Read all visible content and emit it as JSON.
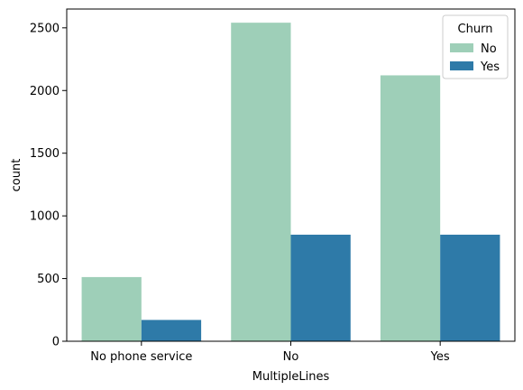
{
  "chart_data": {
    "type": "bar",
    "title": "",
    "xlabel": "MultipleLines",
    "ylabel": "count",
    "categories": [
      "No phone service",
      "No",
      "Yes"
    ],
    "ylim": [
      0,
      2650
    ],
    "yticks": [
      0,
      500,
      1000,
      1500,
      2000,
      2500
    ],
    "grid": false,
    "legend": {
      "title": "Churn",
      "placement": "top-right"
    },
    "series": [
      {
        "name": "No",
        "color": "#9ecfb8",
        "values": [
          512,
          2541,
          2121
        ]
      },
      {
        "name": "Yes",
        "color": "#2e7aa8",
        "values": [
          170,
          850,
          850
        ]
      }
    ]
  }
}
